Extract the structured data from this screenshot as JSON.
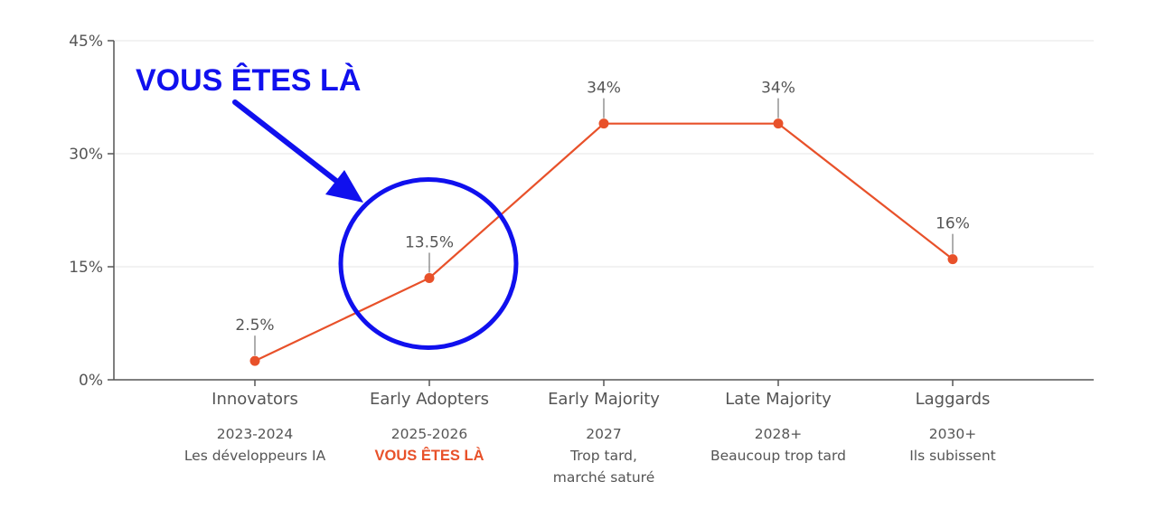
{
  "chart_data": {
    "type": "line",
    "categories": [
      "Innovators",
      "Early Adopters",
      "Early Majority",
      "Late Majority",
      "Laggards"
    ],
    "values": [
      2.5,
      13.5,
      34,
      34,
      16
    ],
    "data_labels": [
      "2.5%",
      "13.5%",
      "34%",
      "34%",
      "16%"
    ],
    "sublabels": [
      [
        "2023-2024",
        "Les développeurs IA"
      ],
      [
        "2025-2026",
        "VOUS ÊTES LÀ"
      ],
      [
        "2027",
        "Trop tard,",
        "marché saturé"
      ],
      [
        "2028+",
        "Beaucoup trop tard"
      ],
      [
        "2030+",
        "Ils subissent"
      ]
    ],
    "highlight_index": 1,
    "yticks": [
      0,
      15,
      30,
      45
    ],
    "ytick_labels": [
      "0%",
      "15%",
      "30%",
      "45%"
    ],
    "ylim": [
      0,
      45
    ],
    "grid": true,
    "annotation": {
      "text": "VOUS ÊTES LÀ",
      "target_index": 1
    },
    "colors": {
      "line": "#e8512a",
      "highlight_text": "#e8512a",
      "annotation": "#1010ee",
      "grid": "#e6e6e6",
      "axis": "#555555"
    }
  }
}
